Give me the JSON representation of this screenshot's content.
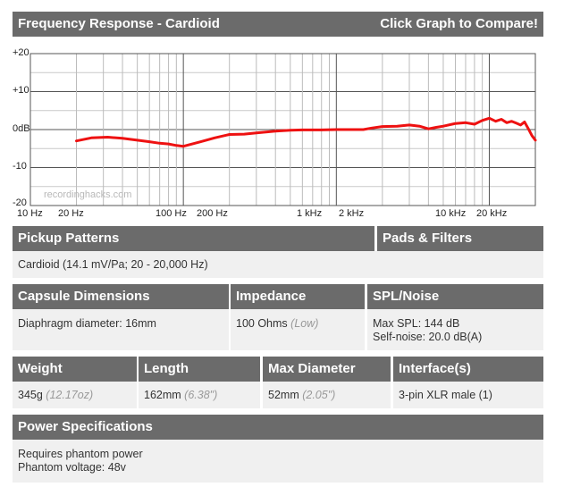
{
  "topbar": {
    "title": "Frequency Response - Cardioid",
    "action": "Click Graph to Compare!"
  },
  "graph": {
    "watermark": "recordinghacks.com",
    "y_labels": [
      "+20",
      "+10",
      "0dB",
      "-10",
      "-20"
    ],
    "x_labels": [
      "10 Hz",
      "20 Hz",
      "100 Hz",
      "200 Hz",
      "1 kHz",
      "2 kHz",
      "10 kHz",
      "20 kHz"
    ]
  },
  "chart_data": {
    "type": "line",
    "xscale": "log",
    "xlim": [
      10,
      20000
    ],
    "ylim": [
      -20,
      20
    ],
    "grid": true,
    "x_tick_labels": [
      "10 Hz",
      "20 Hz",
      "100 Hz",
      "200 Hz",
      "1 kHz",
      "2 kHz",
      "10 kHz",
      "20 kHz"
    ],
    "y_tick_labels": [
      "+20",
      "+10",
      "0dB",
      "-10",
      "-20"
    ],
    "series": [
      {
        "color": "#ee1111",
        "x": [
          20,
          25,
          32,
          40,
          50,
          60,
          70,
          80,
          90,
          100,
          130,
          160,
          200,
          250,
          300,
          400,
          500,
          600,
          800,
          1000,
          1300,
          1500,
          1700,
          2000,
          2500,
          3000,
          3500,
          4000,
          4500,
          5000,
          6000,
          7000,
          8000,
          9000,
          10000,
          11000,
          12000,
          13000,
          14000,
          15000,
          16000,
          17000,
          18000,
          19000,
          20000
        ],
        "y": [
          -3,
          -2.2,
          -2,
          -2.3,
          -2.8,
          -3.2,
          -3.6,
          -3.8,
          -4.2,
          -4.4,
          -3.2,
          -2.2,
          -1.3,
          -1.2,
          -0.9,
          -0.4,
          -0.2,
          -0.1,
          -0.1,
          0,
          0,
          0,
          0.4,
          0.8,
          0.9,
          1.2,
          0.9,
          0.2,
          0.6,
          0.9,
          1.6,
          1.8,
          1.4,
          2.4,
          3.0,
          2.2,
          2.7,
          1.8,
          2.2,
          1.7,
          1.2,
          2.0,
          0.2,
          -1.6,
          -2.8
        ]
      }
    ]
  },
  "sections": {
    "pickup": {
      "header": "Pickup Patterns",
      "value": "Cardioid (14.1 mV/Pa; 20 - 20,000 Hz)"
    },
    "pads": {
      "header": "Pads & Filters"
    },
    "capsule": {
      "header": "Capsule Dimensions",
      "value": "Diaphragm diameter: 16mm"
    },
    "impedance": {
      "header": "Impedance",
      "value": "100 Ohms",
      "note": "(Low)"
    },
    "spl": {
      "header": "SPL/Noise",
      "line1": "Max SPL: 144 dB",
      "line2": "Self-noise: 20.0 dB(A)"
    },
    "weight": {
      "header": "Weight",
      "value": "345g",
      "note": "(12.17oz)"
    },
    "length": {
      "header": "Length",
      "value": "162mm",
      "note": "(6.38\")"
    },
    "diameter": {
      "header": "Max Diameter",
      "value": "52mm",
      "note": "(2.05\")"
    },
    "interface": {
      "header": "Interface(s)",
      "value": "3-pin XLR male (1)"
    },
    "power": {
      "header": "Power Specifications",
      "line1": "Requires phantom power",
      "line2": "Phantom voltage: 48v"
    }
  }
}
